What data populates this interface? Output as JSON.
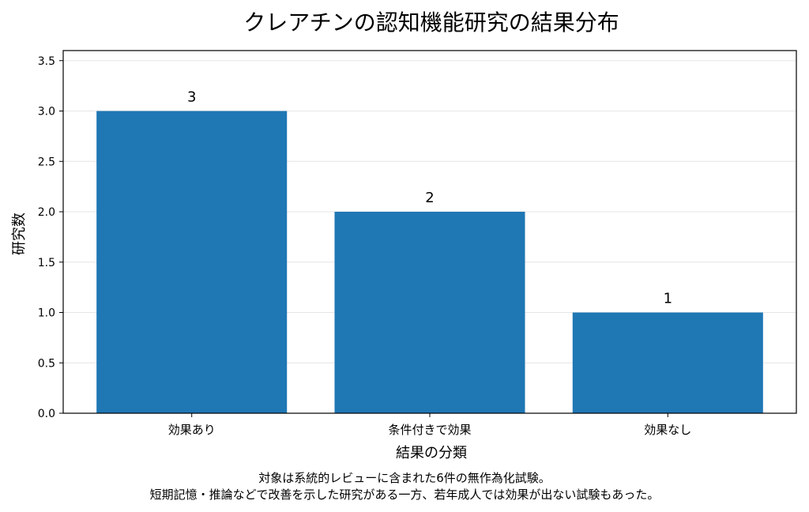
{
  "chart_data": {
    "type": "bar",
    "title": "クレアチンの認知機能研究の結果分布",
    "xlabel": "結果の分類",
    "ylabel": "研究数",
    "categories": [
      "効果あり",
      "条件付きで効果",
      "効果なし"
    ],
    "values": [
      3,
      2,
      1
    ],
    "data_labels": [
      "3",
      "2",
      "1"
    ],
    "ylim": [
      0,
      3.6
    ],
    "yticks": [
      "0.0",
      "0.5",
      "1.0",
      "1.5",
      "2.0",
      "2.5",
      "3.0",
      "3.5"
    ],
    "grid": "horizontal",
    "bar_color": "#1f77b4",
    "caption": [
      "対象は系統的レビューに含まれた6件の無作為化試験。",
      "短期記憶・推論などで改善を示した研究がある一方、若年成人では効果が出ない試験もあった。"
    ]
  }
}
